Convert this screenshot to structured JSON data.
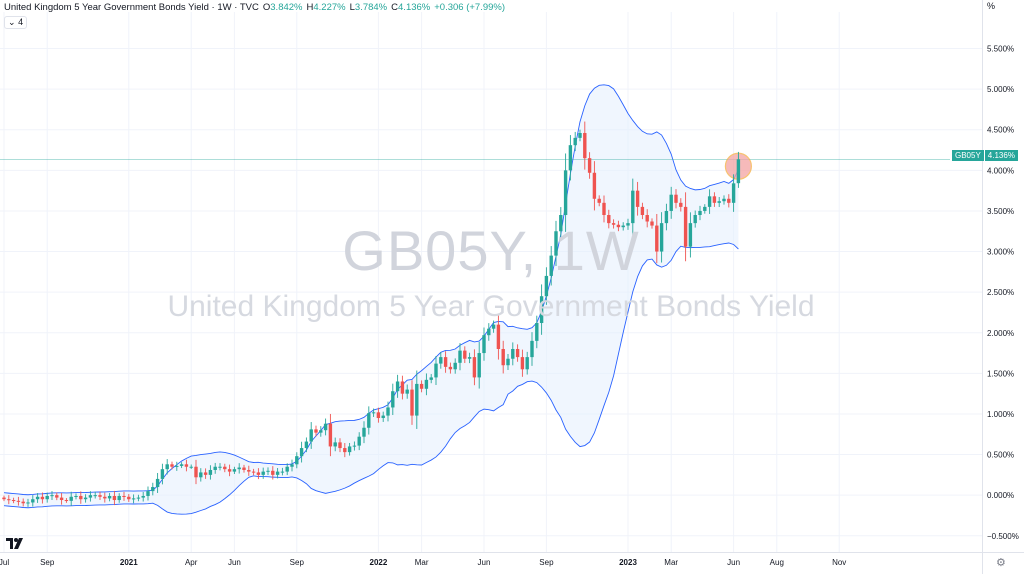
{
  "header": {
    "title": "United Kingdom 5 Year Government Bonds Yield · 1W · TVC",
    "o_label": "O",
    "o_value": "3.842%",
    "h_label": "H",
    "h_value": "4.227%",
    "l_label": "L",
    "l_value": "3.784%",
    "c_label": "C",
    "c_value": "4.136%",
    "change": "+0.306 (+7.99%)",
    "collapse_label": "4"
  },
  "watermark": {
    "symbol": "GB05Y, 1W",
    "name": "United Kingdom 5 Year Government Bonds Yield"
  },
  "axis_unit": "%",
  "price_tag": {
    "symbol": "GB05Y",
    "value": "4.136%"
  },
  "colors": {
    "up": "#26a69a",
    "down": "#ef5350",
    "band": "#2962ff",
    "band_fill": "#e3effd",
    "highlight": "#f4a3a3"
  },
  "chart_data": {
    "type": "candlestick",
    "title": "United Kingdom 5 Year Government Bonds Yield",
    "timeframe": "1W",
    "ylim": [
      -0.7,
      5.95
    ],
    "y_ticks": [
      5.5,
      5.0,
      4.5,
      4.0,
      3.5,
      3.0,
      2.5,
      2.0,
      1.5,
      1.0,
      0.5,
      0.0,
      -0.5
    ],
    "y_tick_labels": [
      "5.500%",
      "5.000%",
      "4.500%",
      "4.000%",
      "3.500%",
      "3.000%",
      "2.500%",
      "2.000%",
      "1.500%",
      "1.000%",
      "0.500%",
      "0.000%",
      "−0.500%"
    ],
    "x_ticks": [
      {
        "label": "Jul",
        "bold": false
      },
      {
        "label": "Sep",
        "bold": false
      },
      {
        "label": "2021",
        "bold": true
      },
      {
        "label": "Apr",
        "bold": false
      },
      {
        "label": "Jun",
        "bold": false
      },
      {
        "label": "Sep",
        "bold": false
      },
      {
        "label": "2022",
        "bold": true
      },
      {
        "label": "Mar",
        "bold": false
      },
      {
        "label": "Jun",
        "bold": false
      },
      {
        "label": "Sep",
        "bold": false
      },
      {
        "label": "2023",
        "bold": true
      },
      {
        "label": "Mar",
        "bold": false
      },
      {
        "label": "Jun",
        "bold": false
      },
      {
        "label": "Aug",
        "bold": false
      },
      {
        "label": "Nov",
        "bold": false
      }
    ],
    "x_tick_weeks": [
      0,
      9,
      26,
      39,
      48,
      61,
      78,
      87,
      100,
      113,
      130,
      139,
      152,
      161,
      174
    ],
    "last_close": 4.136,
    "closes": [
      -0.05,
      -0.06,
      -0.07,
      -0.08,
      -0.1,
      -0.09,
      -0.05,
      -0.02,
      -0.05,
      -0.01,
      0.0,
      -0.03,
      -0.06,
      -0.07,
      -0.02,
      -0.01,
      -0.05,
      -0.03,
      -0.0,
      0.0,
      -0.02,
      -0.04,
      -0.01,
      -0.06,
      -0.01,
      -0.02,
      -0.05,
      -0.04,
      -0.03,
      -0.01,
      0.05,
      0.1,
      0.2,
      0.32,
      0.38,
      0.35,
      0.36,
      0.38,
      0.35,
      0.35,
      0.22,
      0.28,
      0.25,
      0.31,
      0.35,
      0.35,
      0.32,
      0.29,
      0.32,
      0.34,
      0.31,
      0.29,
      0.28,
      0.25,
      0.29,
      0.3,
      0.25,
      0.29,
      0.29,
      0.35,
      0.38,
      0.48,
      0.58,
      0.66,
      0.81,
      0.77,
      0.8,
      0.88,
      0.6,
      0.65,
      0.58,
      0.53,
      0.6,
      0.61,
      0.72,
      0.83,
      1.01,
      1.02,
      0.95,
      0.98,
      1.08,
      1.28,
      1.4,
      1.25,
      1.3,
      0.98,
      1.37,
      1.31,
      1.42,
      1.45,
      1.62,
      1.7,
      1.58,
      1.55,
      1.63,
      1.78,
      1.68,
      1.7,
      1.45,
      1.75,
      1.97,
      2.05,
      2.1,
      1.8,
      1.6,
      1.68,
      1.8,
      1.7,
      1.55,
      1.7,
      1.9,
      2.12,
      2.45,
      2.7,
      2.95,
      3.25,
      3.45,
      4.0,
      4.31,
      4.4,
      4.46,
      4.15,
      3.97,
      3.65,
      3.6,
      3.45,
      3.35,
      3.33,
      3.3,
      3.32,
      3.35,
      3.75,
      3.55,
      3.45,
      3.37,
      3.32,
      3.0,
      3.35,
      3.5,
      3.7,
      3.6,
      3.55,
      3.06,
      3.35,
      3.45,
      3.5,
      3.55,
      3.68,
      3.6,
      3.62,
      3.65,
      3.6,
      3.84,
      4.14
    ],
    "notes": "closes are weekly closing yields (%) in chronological order; final candle O 3.842 H 4.227 L 3.784 C 4.136"
  }
}
